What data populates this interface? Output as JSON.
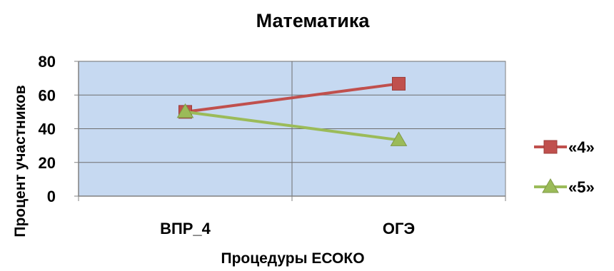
{
  "chart_data": {
    "type": "line",
    "title": "Математика",
    "xlabel": "Процедуры ЕСОКО",
    "ylabel": "Процент участников",
    "categories": [
      "ВПР_4",
      "ОГЭ"
    ],
    "ylim": [
      0,
      80
    ],
    "yticks": [
      0,
      20,
      40,
      60,
      80
    ],
    "grid": true,
    "legend_position": "right",
    "plot_background": "#c6d9f1",
    "series": [
      {
        "name": "«4»",
        "values": [
          50,
          66.7
        ],
        "color": "#c0504d",
        "marker": "square"
      },
      {
        "name": "«5»",
        "values": [
          50,
          33.3
        ],
        "color": "#9bbb59",
        "marker": "triangle"
      }
    ]
  }
}
